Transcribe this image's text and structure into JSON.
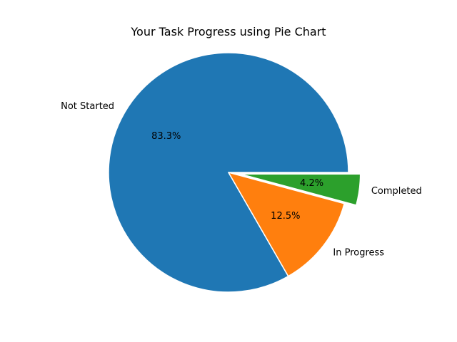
{
  "chart_data": {
    "type": "pie",
    "title": "Your Task Progress using Pie Chart",
    "slices": [
      {
        "label": "Not Started",
        "value": 83.3,
        "pct_label": "83.3%",
        "color": "#1f77b4",
        "explode": 0
      },
      {
        "label": "In Progress",
        "value": 12.5,
        "pct_label": "12.5%",
        "color": "#ff7f0e",
        "explode": 0
      },
      {
        "label": "Completed",
        "value": 4.2,
        "pct_label": "4.2%",
        "color": "#2ca02c",
        "explode": 0.1
      }
    ],
    "start_angle_deg": 0,
    "direction": "counterclockwise",
    "legend": "none"
  }
}
